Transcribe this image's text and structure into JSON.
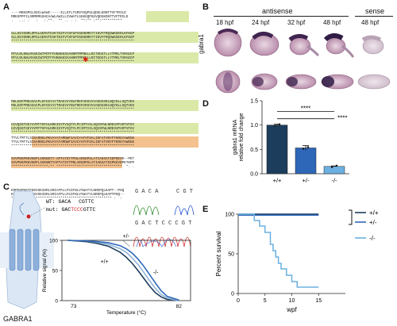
{
  "panel_labels": {
    "a": "A",
    "b": "B",
    "c": "C",
    "d": "D",
    "e": "E"
  },
  "panel_a": {
    "seq_rows": [
      "----MKKSPGLSDCLWAWI-----ILLSTLTGRSYGQPSLQDELKDNTTVFTRILD",
      "MRKSPPFILSRMRMGGHCAAWLAWILLIVWATLSGKGQPSGVQDGKDNTTVFTRILD",
      ".   ..: :   :   :.**.  ** .. . :  **:** :**:**********",
      "SLLDGYDNRLRPGLGERVTEVKTDIFVTSFGPVSDHDMEYTIDVFFRQSWKDERLKFKGP",
      "SLLDGYDNRLRPGLGERVTEVKTDIFVTSFGPVSDHDMEYTIDVFFRQSWKDERLKFKGP",
      "************************************************************",
      "MTVLRLNNLMASKIWTPDTFFHNGKKSVAHNMTMPNKLLRITEDGTLLYTMRLTVRAECP",
      "MTVLRLNNLMASKIWTPDTFFHNGKKSVAHNMTMPNKLLRITEDGTLLYTMRLTVRAECP",
      "************************************************************",
      "MHLEDFPMDAHACPLKFGSYAYTRAEVVYEWTREPARSVVVAEDGSRLNQYDLLGQTVDS",
      "MHLEDFPMDAHACPLKFGSYAYTRAEVVYEWTREPARSVVVAEDGSRLNQYDLLGQTVDS",
      "************************************************************",
      "GIVQSSTGEYVVMTTHFHLKRKIGYFVIQTYLPCIMTVILSQVSFWLNRESVPARTVFGV",
      "GIVQSSTGEYVVMTTHFHLKRKIGYFVIQTYLPCIMTVILSQVSFWLNRESVPARTVFGV",
      "************************************************************",
      "TTVLTMTTLSISARNSLPKVAYATAMDWFIAVCYAFVFSALIEFATVNYFTKRGYAWDGK",
      "TTVLTMTTLSISARNSLPKVAYATAMDWFIAVCYAFVFSALIEFATVNYFTKRGYAWDGK",
      "************************************************************",
      "SVVPEKPKKVKDPLIKKNSTY-APTATSYTPNLARGDPGLATIAKSATIEPKEVK--PET",
      "SVVPEKPKKVKDPLIKKNNTYAPTATSYTPNLARGDPGLATIAKSATIEPKEVKPETKPP",
      "******************:** ********************************  *. .",
      "KPPEKPKKTFNSVSKIDRLSRIAFPLLFGIFNLVYWATYLNREPQLKAPT--PHQ",
      "KPPEKPKKTFNSVSKIDRLSRIAFPLLFGIFNLVYWATYLNREPQLKAPTPHQ--",
      "************************************************* :  :"
    ]
  },
  "panel_b": {
    "group_antisense": "antisense",
    "group_sense": "sense",
    "timepoints": [
      "18 hpf",
      "24 hpf",
      "32 hpf",
      "48 hpf",
      "48 hpf"
    ],
    "gene": "gabra1"
  },
  "panel_c": {
    "wt_label": "WT:",
    "wt_seq_a": "GACA",
    "wt_seq_b": "CGTTC",
    "mut_label": "mut:",
    "mut_seq_a": "GAC",
    "mut_seq_b": "TCCC",
    "mut_seq_c": "GTTC",
    "chrom_top_a": "G A C A",
    "chrom_top_b": "C G T",
    "chrom_bottom": "G A C T C C C G T",
    "protein_label": "GABRA1",
    "ylabel": "Relative signal (%)",
    "xlabel": "Temperature (°C)",
    "curve_labels": [
      "+/-",
      "+/+",
      "-/-"
    ]
  },
  "chart_data": [
    {
      "type": "line",
      "panel": "C",
      "xlabel": "Temperature (°C)",
      "ylabel": "Relative signal (%)",
      "xlim": [
        72,
        83
      ],
      "ylim": [
        0,
        100
      ],
      "x_ticks": [
        73,
        82
      ],
      "y_ticks": [
        0,
        50,
        100
      ],
      "series": [
        {
          "name": "+/+",
          "x": [
            72.5,
            74,
            75,
            76,
            77,
            77.5,
            78,
            78.5,
            79,
            79.5,
            80,
            80.5,
            81,
            82
          ],
          "y": [
            100,
            98,
            95,
            90,
            80,
            72,
            62,
            50,
            37,
            24,
            13,
            6,
            2,
            0
          ]
        },
        {
          "name": "+/-",
          "x": [
            72.5,
            74,
            75,
            76,
            77,
            77.5,
            78,
            78.5,
            79,
            79.5,
            80,
            80.5,
            81,
            82
          ],
          "y": [
            100,
            99,
            97,
            93,
            86,
            80,
            71,
            60,
            47,
            33,
            20,
            10,
            4,
            0
          ]
        },
        {
          "name": "-/-",
          "x": [
            72.5,
            74,
            75,
            76,
            77,
            77.5,
            78,
            78.5,
            79,
            79.5,
            80,
            80.5,
            81,
            82
          ],
          "y": [
            100,
            99,
            98,
            96,
            91,
            86,
            79,
            69,
            57,
            43,
            29,
            16,
            7,
            1
          ]
        }
      ]
    },
    {
      "type": "bar",
      "panel": "D",
      "categories": [
        "+/+",
        "+/-",
        "-/-"
      ],
      "values": [
        1.0,
        0.53,
        0.15
      ],
      "errors": [
        0.02,
        0.05,
        0.01
      ],
      "ylabel": "gabra1 mRNA relative fold change",
      "ylim": [
        0,
        1.5
      ],
      "y_ticks": [
        0.0,
        0.5,
        1.0,
        1.5
      ],
      "y_tick_labels": [
        "0.0",
        "0.5",
        "1.0",
        "1.5"
      ],
      "significance": [
        {
          "from": "+/+",
          "to": "+/-",
          "label": "****"
        },
        {
          "from": "+/+",
          "to": "-/-",
          "label": "****"
        }
      ],
      "colors": [
        "#1d3d5c",
        "#2e67b8",
        "#6bb0e0"
      ]
    },
    {
      "type": "line",
      "panel": "E",
      "xlabel": "wpf",
      "ylabel": "Percent survival",
      "xlim": [
        0,
        20
      ],
      "ylim": [
        0,
        100
      ],
      "x_ticks": [
        0,
        5,
        10,
        15
      ],
      "y_ticks": [
        0,
        50,
        100
      ],
      "series": [
        {
          "name": "+/+",
          "x": [
            0,
            15
          ],
          "y": [
            100,
            100
          ],
          "color": "#1d3d5c"
        },
        {
          "name": "+/-",
          "x": [
            0,
            15
          ],
          "y": [
            100,
            100
          ],
          "color": "#2e67b8"
        },
        {
          "name": "-/-",
          "x": [
            0,
            3,
            3,
            4,
            4,
            5,
            5,
            6,
            6,
            6.5,
            6.5,
            7,
            7,
            7.5,
            7.5,
            8,
            8,
            9,
            9,
            10,
            10,
            11,
            11,
            15
          ],
          "y": [
            100,
            100,
            92,
            92,
            85,
            85,
            77,
            77,
            62,
            62,
            54,
            54,
            46,
            46,
            38,
            38,
            31,
            31,
            23,
            23,
            15,
            15,
            8,
            8
          ],
          "color": "#6bb0e0"
        }
      ],
      "legend": [
        "+/+",
        "+/-",
        "-/-"
      ]
    }
  ],
  "colors": {
    "wt": "#1d3d5c",
    "het": "#2e67b8",
    "mut": "#6bb0e0",
    "mutation_text": "#d42020"
  }
}
